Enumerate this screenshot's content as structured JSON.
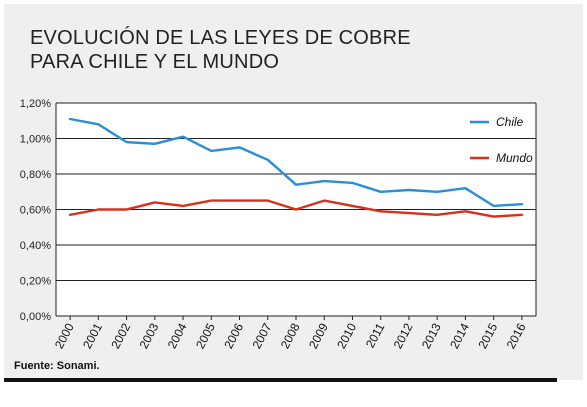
{
  "title_line1": "EVOLUCIÓN DE LAS LEYES DE COBRE",
  "title_line2": "PARA CHILE Y EL MUNDO",
  "source": "Fuente: Sonami.",
  "chart_data": {
    "type": "line",
    "title": "EVOLUCIÓN DE LAS LEYES DE COBRE PARA CHILE Y EL MUNDO",
    "x": [
      "2000",
      "2001",
      "2002",
      "2003",
      "2004",
      "2005",
      "2006",
      "2007",
      "2008",
      "2009",
      "2010",
      "2011",
      "2012",
      "2013",
      "2014",
      "2015",
      "2016"
    ],
    "ylim": [
      0,
      1.2
    ],
    "yticks": [
      "0,00%",
      "0,20%",
      "0,40%",
      "0,60%",
      "0,80%",
      "1,00%",
      "1,20%"
    ],
    "grid": true,
    "legend_position": "top-right",
    "series": [
      {
        "name": "Chile",
        "color": "#2a8fd6",
        "values": [
          1.11,
          1.08,
          0.98,
          0.97,
          1.01,
          0.93,
          0.95,
          0.88,
          0.74,
          0.76,
          0.75,
          0.7,
          0.71,
          0.7,
          0.72,
          0.62,
          0.63
        ]
      },
      {
        "name": "Mundo",
        "color": "#d8301c",
        "values": [
          0.57,
          0.6,
          0.6,
          0.64,
          0.62,
          0.65,
          0.65,
          0.65,
          0.6,
          0.65,
          0.62,
          0.59,
          0.58,
          0.57,
          0.59,
          0.56,
          0.57
        ]
      }
    ]
  }
}
